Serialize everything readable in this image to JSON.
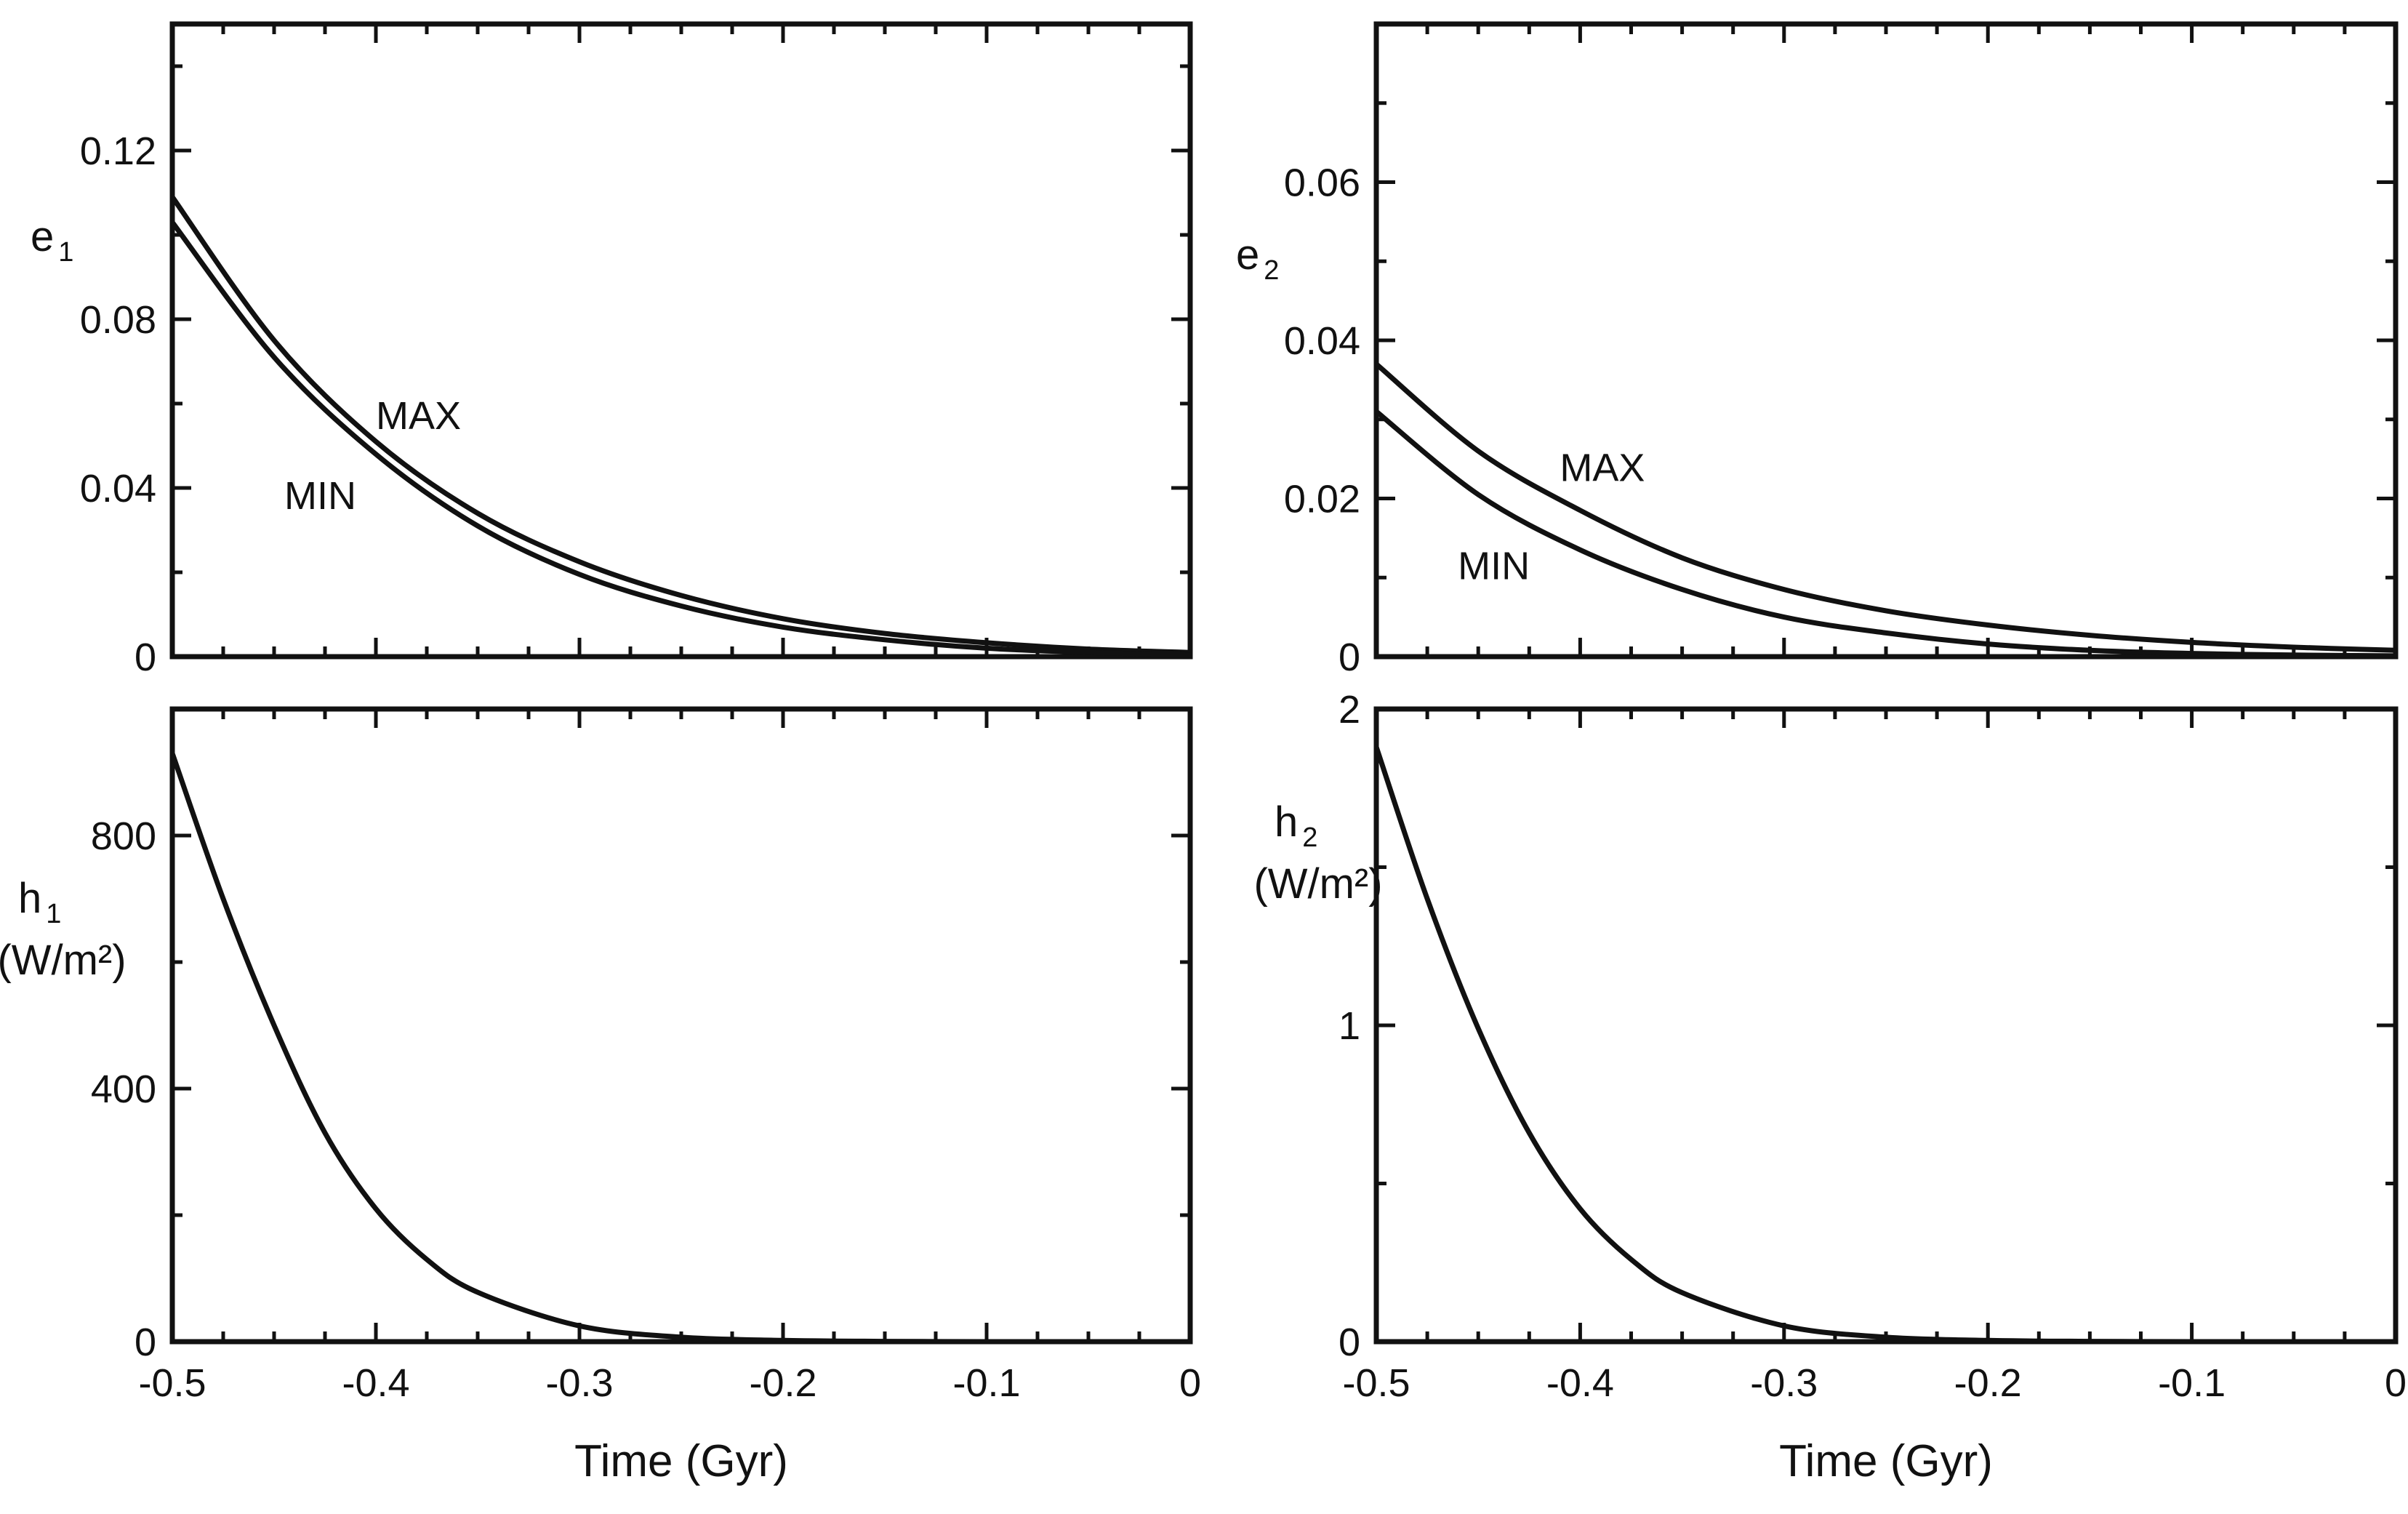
{
  "chart_data": [
    {
      "id": "e1",
      "type": "line",
      "ylabel": "e",
      "ylabel_subscript": "1",
      "ylabel_unit": "",
      "xlabel": "",
      "xlim": [
        -0.5,
        0
      ],
      "ylim": [
        0,
        0.15
      ],
      "yticks": [
        0,
        0.04,
        0.08,
        0.12
      ],
      "ytick_labels": [
        "0",
        "0.04",
        "0.08",
        "0.12"
      ],
      "xticks": [
        -0.5,
        -0.4,
        -0.3,
        -0.2,
        -0.1,
        0
      ],
      "xtick_labels": [],
      "series": [
        {
          "name": "MAX",
          "x": [
            -0.5,
            -0.45,
            -0.4,
            -0.35,
            -0.3,
            -0.25,
            -0.2,
            -0.15,
            -0.1,
            -0.05,
            0
          ],
          "y": [
            0.109,
            0.075,
            0.051,
            0.034,
            0.0225,
            0.0145,
            0.009,
            0.0055,
            0.0033,
            0.0018,
            0.001
          ]
        },
        {
          "name": "MIN",
          "x": [
            -0.5,
            -0.45,
            -0.4,
            -0.35,
            -0.3,
            -0.25,
            -0.2,
            -0.15,
            -0.1,
            -0.05,
            0
          ],
          "y": [
            0.103,
            0.071,
            0.048,
            0.031,
            0.0195,
            0.012,
            0.007,
            0.004,
            0.002,
            0.001,
            0.0004
          ]
        }
      ],
      "annotations": [
        {
          "text": "MAX",
          "x": -0.4,
          "y": 0.054
        },
        {
          "text": "MIN",
          "x": -0.445,
          "y": 0.035
        }
      ]
    },
    {
      "id": "e2",
      "type": "line",
      "ylabel": "e",
      "ylabel_subscript": "2",
      "ylabel_unit": "",
      "xlabel": "",
      "xlim": [
        -0.5,
        0
      ],
      "ylim": [
        0,
        0.08
      ],
      "yticks": [
        0,
        0.02,
        0.04,
        0.06
      ],
      "ytick_labels": [
        "0",
        "0.02",
        "0.04",
        "0.06"
      ],
      "xticks": [
        -0.5,
        -0.4,
        -0.3,
        -0.2,
        -0.1,
        0
      ],
      "xtick_labels": [],
      "series": [
        {
          "name": "MAX",
          "x": [
            -0.5,
            -0.45,
            -0.4,
            -0.35,
            -0.3,
            -0.25,
            -0.2,
            -0.15,
            -0.1,
            -0.05,
            0
          ],
          "y": [
            0.037,
            0.026,
            0.0185,
            0.0125,
            0.0085,
            0.0058,
            0.004,
            0.0027,
            0.0018,
            0.0012,
            0.0008
          ]
        },
        {
          "name": "MIN",
          "x": [
            -0.5,
            -0.45,
            -0.4,
            -0.35,
            -0.3,
            -0.25,
            -0.2,
            -0.15,
            -0.1,
            -0.05,
            0
          ],
          "y": [
            0.031,
            0.0205,
            0.0135,
            0.0085,
            0.005,
            0.003,
            0.0016,
            0.0008,
            0.0004,
            0.0002,
            0.0001
          ]
        }
      ],
      "annotations": [
        {
          "text": "MAX",
          "x": -0.41,
          "y": 0.0222
        },
        {
          "text": "MIN",
          "x": -0.46,
          "y": 0.0098
        }
      ]
    },
    {
      "id": "h1",
      "type": "line",
      "ylabel": "h",
      "ylabel_subscript": "1",
      "ylabel_unit": "(W/m²)",
      "xlabel": "Time (Gyr)",
      "xlim": [
        -0.5,
        0
      ],
      "ylim": [
        0,
        1000
      ],
      "yticks": [
        0,
        400,
        800
      ],
      "ytick_labels": [
        "0",
        "400",
        "800"
      ],
      "xticks": [
        -0.5,
        -0.4,
        -0.3,
        -0.2,
        -0.1,
        0
      ],
      "xtick_labels": [
        "-0.5",
        "-0.4",
        "-0.3",
        "-0.2",
        "-0.1",
        "0"
      ],
      "series": [
        {
          "name": "h1",
          "x": [
            -0.5,
            -0.475,
            -0.45,
            -0.425,
            -0.4,
            -0.375,
            -0.35,
            -0.3,
            -0.25,
            -0.2,
            -0.15,
            -0.1,
            -0.05,
            0
          ],
          "y": [
            930,
            700,
            500,
            330,
            210,
            130,
            78,
            25,
            7,
            2,
            0.5,
            0,
            0,
            0
          ]
        }
      ],
      "annotations": []
    },
    {
      "id": "h2",
      "type": "line",
      "ylabel": "h",
      "ylabel_subscript": "2",
      "ylabel_unit": "(W/m²)",
      "xlabel": "Time (Gyr)",
      "xlim": [
        -0.5,
        0
      ],
      "ylim": [
        0,
        2
      ],
      "yticks": [
        0,
        1,
        2
      ],
      "ytick_labels": [
        "0",
        "1",
        "2"
      ],
      "xticks": [
        -0.5,
        -0.4,
        -0.3,
        -0.2,
        -0.1,
        0
      ],
      "xtick_labels": [
        "-0.5",
        "-0.4",
        "-0.3",
        "-0.2",
        "-0.1",
        "0"
      ],
      "series": [
        {
          "name": "h2",
          "x": [
            -0.5,
            -0.475,
            -0.45,
            -0.425,
            -0.4,
            -0.375,
            -0.35,
            -0.3,
            -0.25,
            -0.2,
            -0.15,
            -0.1,
            -0.05,
            0
          ],
          "y": [
            1.88,
            1.4,
            0.99,
            0.66,
            0.42,
            0.26,
            0.155,
            0.05,
            0.014,
            0.004,
            0.001,
            0,
            0,
            0
          ]
        }
      ],
      "annotations": []
    }
  ]
}
